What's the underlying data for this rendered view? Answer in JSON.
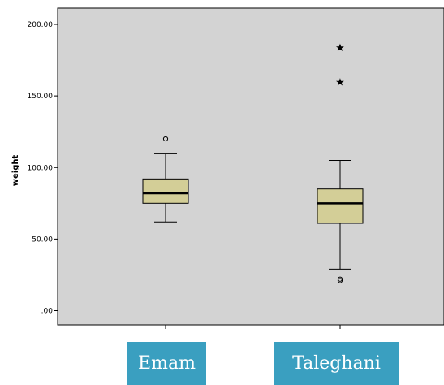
{
  "chart_data": {
    "type": "boxplot",
    "ylabel": "weight",
    "ylim": [
      -7,
      212
    ],
    "yticks": [
      0,
      50,
      100,
      150,
      200
    ],
    "ytick_labels": [
      ".00",
      "50.00",
      "100.00",
      "150.00",
      "200.00"
    ],
    "grid": false,
    "categories": [
      "Emam",
      "Taleghani"
    ],
    "boxes": [
      {
        "min": 62,
        "q1": 75,
        "median": 82,
        "q3": 92,
        "max": 110,
        "outliers": [
          120
        ],
        "extremes": []
      },
      {
        "min": 29,
        "q1": 61,
        "median": 75,
        "q3": 85,
        "max": 105,
        "outliers": [
          21,
          22
        ],
        "extremes": [
          160,
          184
        ]
      }
    ],
    "colors": {
      "plot_background": "#d3d3d3",
      "box_fill": "#d3ce97",
      "label_background": "#3a9fc0"
    }
  }
}
